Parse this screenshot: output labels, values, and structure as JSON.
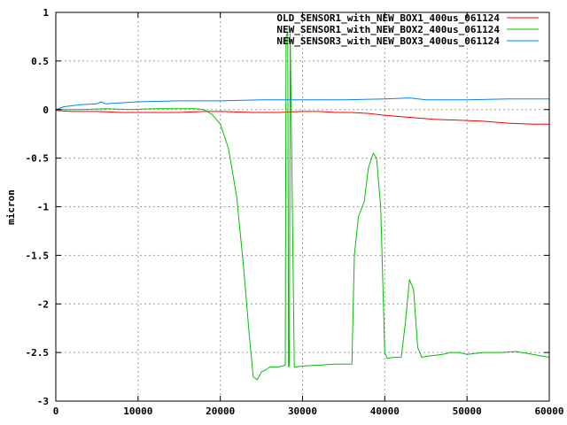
{
  "chart_data": {
    "type": "line",
    "title": "",
    "xlabel": "",
    "ylabel": "micron",
    "xlim": [
      0,
      60000
    ],
    "ylim": [
      -3,
      1
    ],
    "xticks": [
      "0",
      "10000",
      "20000",
      "30000",
      "40000",
      "50000",
      "60000"
    ],
    "yticks": [
      "1",
      "0.5",
      "0",
      "-0.5",
      "-1",
      "-1.5",
      "-2",
      "-2.5",
      "-3"
    ],
    "grid": true,
    "legend_position": "top-right",
    "series": [
      {
        "name": "OLD_SENSOR1_with_NEW_BOX1_400us_061124",
        "color": "#ff0000",
        "x": [
          0,
          2000,
          5000,
          8000,
          10000,
          12000,
          15000,
          18000,
          20000,
          24000,
          27000,
          30000,
          32000,
          34000,
          36000,
          38000,
          40000,
          43000,
          46000,
          49000,
          52000,
          55000,
          58000,
          60000
        ],
        "y": [
          -0.01,
          -0.02,
          -0.02,
          -0.03,
          -0.03,
          -0.03,
          -0.03,
          -0.02,
          -0.02,
          -0.03,
          -0.03,
          -0.02,
          -0.02,
          -0.03,
          -0.03,
          -0.04,
          -0.06,
          -0.08,
          -0.1,
          -0.11,
          -0.12,
          -0.14,
          -0.15,
          -0.15
        ]
      },
      {
        "name": "NEW_SENSOR1_with_NEW_BOX2_400us_061124",
        "color": "#00c000",
        "x": [
          0,
          3000,
          6000,
          9000,
          12000,
          15000,
          17000,
          18000,
          19000,
          20000,
          21000,
          22000,
          22800,
          23500,
          24000,
          24500,
          25000,
          25500,
          26000,
          27000,
          27900,
          28000,
          28200,
          28300,
          28400,
          28500,
          29000,
          30000,
          32000,
          34000,
          36000,
          36300,
          36800,
          37500,
          38000,
          38600,
          39000,
          39500,
          40000,
          40300,
          41000,
          42000,
          42500,
          43000,
          43500,
          44000,
          44500,
          45000,
          46000,
          47000,
          48000,
          49000,
          50000,
          52000,
          54000,
          56000,
          58000,
          60000
        ],
        "y": [
          0.0,
          0.0,
          0.01,
          0.0,
          0.01,
          0.01,
          0.01,
          0.0,
          -0.05,
          -0.15,
          -0.4,
          -0.9,
          -1.6,
          -2.3,
          -2.75,
          -2.78,
          -2.7,
          -2.68,
          -2.65,
          -2.65,
          -2.63,
          0.75,
          0.8,
          -2.65,
          -2.63,
          0.78,
          -2.65,
          -2.64,
          -2.63,
          -2.62,
          -2.62,
          -1.5,
          -1.1,
          -0.95,
          -0.6,
          -0.45,
          -0.5,
          -1.0,
          -2.5,
          -2.56,
          -2.55,
          -2.55,
          -2.2,
          -1.75,
          -1.85,
          -2.45,
          -2.55,
          -2.54,
          -2.53,
          -2.52,
          -2.5,
          -2.5,
          -2.52,
          -2.5,
          -2.5,
          -2.49,
          -2.52,
          -2.55
        ]
      },
      {
        "name": "NEW_SENSOR3_with_NEW_BOX3_400us_061124",
        "color": "#0080ff",
        "x": [
          0,
          1000,
          3000,
          5000,
          5500,
          6000,
          8000,
          10000,
          15000,
          20000,
          25000,
          30000,
          35000,
          40000,
          43000,
          45000,
          50000,
          55000,
          60000
        ],
        "y": [
          0.0,
          0.03,
          0.05,
          0.06,
          0.08,
          0.06,
          0.07,
          0.08,
          0.09,
          0.09,
          0.1,
          0.1,
          0.1,
          0.11,
          0.12,
          0.1,
          0.1,
          0.11,
          0.11
        ]
      }
    ]
  }
}
